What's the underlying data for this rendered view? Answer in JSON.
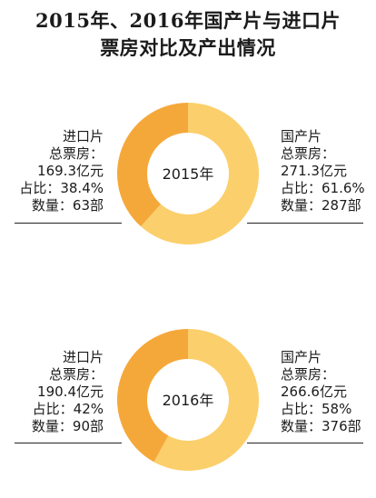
{
  "title": {
    "line1": "2015年、2016年国产片与进口片",
    "line2": "票房对比及产出情况"
  },
  "colors": {
    "domestic": "#FBCF6B",
    "imported": "#F5A83A",
    "hole": "#ffffff"
  },
  "chart_data": [
    {
      "type": "pie",
      "center_label": "2015年",
      "categories": [
        "国产片",
        "进口片"
      ],
      "values": [
        61.6,
        38.4
      ],
      "box_office": [
        "271.3亿元",
        "169.3亿元"
      ],
      "counts": [
        287,
        63
      ]
    },
    {
      "type": "pie",
      "center_label": "2016年",
      "categories": [
        "国产片",
        "进口片"
      ],
      "values": [
        58,
        42
      ],
      "box_office": [
        "266.6亿元",
        "190.4亿元"
      ],
      "counts": [
        376,
        90
      ]
    }
  ],
  "labels": {
    "y2015": {
      "imported": {
        "name": "进口片",
        "box_office_title": "总票房：",
        "box_office": "169.3亿元",
        "share": "占比：38.4%",
        "count": "数量：63部"
      },
      "domestic": {
        "name": "国产片",
        "box_office_title": "总票房：",
        "box_office": "271.3亿元",
        "share": "占比：61.6%",
        "count": "数量：287部"
      }
    },
    "y2016": {
      "imported": {
        "name": "进口片",
        "box_office_title": "总票房：",
        "box_office": "190.4亿元",
        "share": "占比：42%",
        "count": "数量：90部"
      },
      "domestic": {
        "name": "国产片",
        "box_office_title": "总票房：",
        "box_office": "266.6亿元",
        "share": "占比：58%",
        "count": "数量：376部"
      }
    }
  }
}
